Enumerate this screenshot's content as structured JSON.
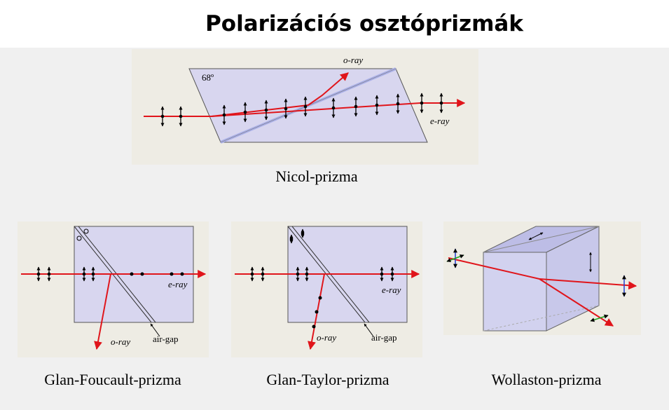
{
  "title": "Polarizációs osztóprizmák",
  "figures": [
    {
      "caption": "Nicol-prizma",
      "angle": "68º",
      "o_ray": "o-ray",
      "e_ray": "e-ray"
    },
    {
      "caption": "Glan-Foucault-prizma",
      "e_ray": "e-ray",
      "o_ray": "o-ray",
      "gap": "air-gap"
    },
    {
      "caption": "Glan-Taylor-prizma",
      "e_ray": "e-ray",
      "o_ray": "o-ray",
      "gap": "air-gap"
    },
    {
      "caption": "Wollaston-prizma"
    }
  ]
}
